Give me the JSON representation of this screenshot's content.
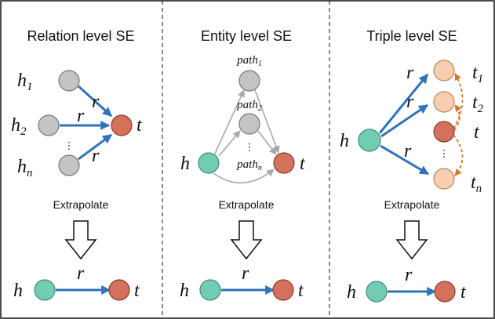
{
  "panels": [
    {
      "title": "Relation level SE",
      "heads": [
        {
          "base": "h",
          "sub": "1"
        },
        {
          "base": "h",
          "sub": "2"
        },
        {
          "base": "h",
          "sub": "n"
        }
      ],
      "relations": [
        "r",
        "r",
        "r"
      ],
      "tail": "t",
      "ellipsis": "⋮",
      "extrapolate": "Extrapolate",
      "result": {
        "head": "h",
        "relation": "r",
        "tail": "t"
      }
    },
    {
      "title": "Entity level SE",
      "head": "h",
      "paths": [
        {
          "base": "path",
          "sub": "1"
        },
        {
          "base": "path",
          "sub": "2"
        },
        {
          "base": "path",
          "sub": "n"
        }
      ],
      "tail": "t",
      "ellipsis": "⋮",
      "extrapolate": "Extrapolate",
      "result": {
        "head": "h",
        "relation": "r",
        "tail": "t"
      }
    },
    {
      "title": "Triple level SE",
      "head": "h",
      "relations": [
        "r",
        "r",
        "r"
      ],
      "tails": [
        {
          "base": "t",
          "sub": "1"
        },
        {
          "base": "t",
          "sub": "2"
        },
        {
          "base": "t",
          "sub": "n"
        }
      ],
      "target": "t",
      "ellipsis": "⋮",
      "extrapolate": "Extrapolate",
      "result": {
        "head": "h",
        "relation": "r",
        "tail": "t"
      }
    }
  ]
}
